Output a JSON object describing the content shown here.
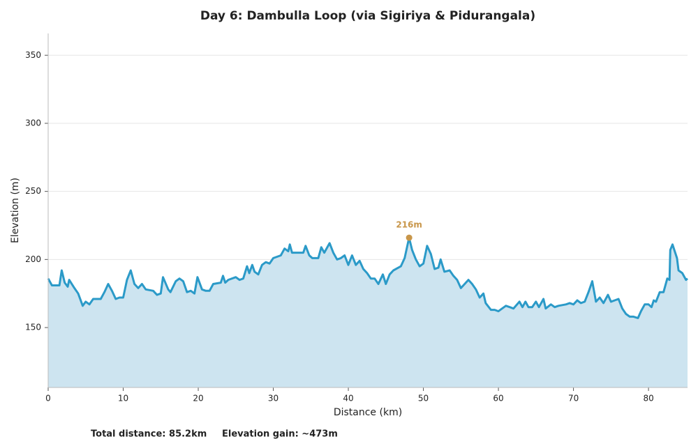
{
  "chart_data": {
    "type": "line",
    "title": "Day 6: Dambulla Loop (via Sigiriya & Pidurangala)",
    "xlabel": "Distance (km)",
    "ylabel": "Elevation (m)",
    "x": [
      0,
      0.5,
      1,
      1.5,
      1.8,
      2.2,
      2.6,
      2.8,
      3.5,
      4,
      4.6,
      5,
      5.5,
      6,
      7,
      7.5,
      8,
      8.5,
      9,
      9.5,
      10,
      10.5,
      11,
      11.5,
      12,
      12.5,
      13,
      14,
      14.5,
      15,
      15.3,
      16,
      16.3,
      17,
      17.5,
      18,
      18.5,
      19,
      19.5,
      19.9,
      20.5,
      21,
      21.5,
      22,
      23,
      23.3,
      23.6,
      24,
      25,
      25.5,
      26,
      26.5,
      26.8,
      27.2,
      27.5,
      28,
      28.5,
      29,
      29.5,
      30,
      31,
      31.5,
      32,
      32.2,
      32.5,
      33,
      34,
      34.3,
      34.8,
      35.2,
      36,
      36.4,
      36.8,
      37.5,
      38,
      38.5,
      39,
      39.5,
      40,
      40.5,
      41,
      41.5,
      42,
      42.5,
      43,
      43.5,
      44,
      44.6,
      45,
      45.5,
      46,
      47,
      47.5,
      48.1,
      48.5,
      49,
      49.5,
      50,
      50.5,
      51,
      51.5,
      52,
      52.3,
      52.8,
      53.5,
      54,
      54.5,
      55,
      55.5,
      56,
      56.5,
      57,
      57.5,
      58,
      58.3,
      59,
      59.5,
      60,
      60.5,
      61,
      61.5,
      62,
      62.8,
      63.2,
      63.6,
      64,
      64.5,
      65,
      65.4,
      66,
      66.3,
      67,
      67.5,
      68,
      69,
      69.5,
      70,
      70.5,
      71,
      71.5,
      72,
      72.5,
      73,
      73.5,
      74,
      74.6,
      75,
      75.5,
      76,
      76.5,
      77,
      77.5,
      78,
      78.6,
      79,
      79.5,
      80,
      80.4,
      80.7,
      81,
      81.5,
      82,
      82.5,
      82.8,
      82.9,
      83.2,
      83.5,
      83.8,
      84,
      84.5,
      85,
      85.2
    ],
    "series": [
      {
        "name": "Elevation",
        "color": "#2b9ac8",
        "fill": "#cde4f0",
        "values": [
          186,
          181,
          181,
          181,
          192,
          183,
          180,
          185,
          179,
          175,
          166,
          169,
          167,
          171,
          171,
          176,
          182,
          177,
          171,
          172,
          172,
          185,
          192,
          182,
          179,
          182,
          178,
          177,
          174,
          175,
          187,
          178,
          176,
          184,
          186,
          184,
          176,
          177,
          175,
          187,
          178,
          177,
          177,
          182,
          183,
          188,
          183,
          185,
          187,
          185,
          186,
          195,
          190,
          196,
          191,
          189,
          196,
          198,
          197,
          201,
          203,
          208,
          206,
          211,
          205,
          205,
          205,
          210,
          203,
          201,
          201,
          209,
          205,
          212,
          205,
          200,
          201,
          203,
          196,
          203,
          196,
          199,
          193,
          190,
          186,
          186,
          182,
          189,
          182,
          189,
          192,
          195,
          201,
          216,
          207,
          200,
          195,
          197,
          210,
          204,
          193,
          194,
          200,
          191,
          192,
          188,
          185,
          179,
          182,
          185,
          182,
          178,
          172,
          175,
          168,
          163,
          163,
          162,
          164,
          166,
          165,
          164,
          169,
          165,
          169,
          165,
          165,
          169,
          165,
          171,
          164,
          167,
          165,
          166,
          167,
          168,
          167,
          170,
          168,
          169,
          176,
          184,
          169,
          172,
          168,
          174,
          169,
          170,
          171,
          164,
          160,
          158,
          158,
          157,
          162,
          167,
          167,
          165,
          170,
          169,
          176,
          176,
          186,
          185,
          207,
          211,
          206,
          201,
          192,
          190,
          185,
          186
        ]
      }
    ],
    "peak": {
      "x": 48.1,
      "value": 216,
      "label": "216m",
      "color": "#c8964a"
    },
    "xlim": [
      0,
      85.2
    ],
    "ylim": [
      106,
      366
    ],
    "xticks": [
      0,
      10,
      20,
      30,
      40,
      50,
      60,
      70,
      80
    ],
    "yticks": [
      150,
      200,
      250,
      300,
      350
    ],
    "grid": true,
    "footer": [
      "Total distance: 85.2km",
      "Elevation gain: ~473m"
    ]
  }
}
